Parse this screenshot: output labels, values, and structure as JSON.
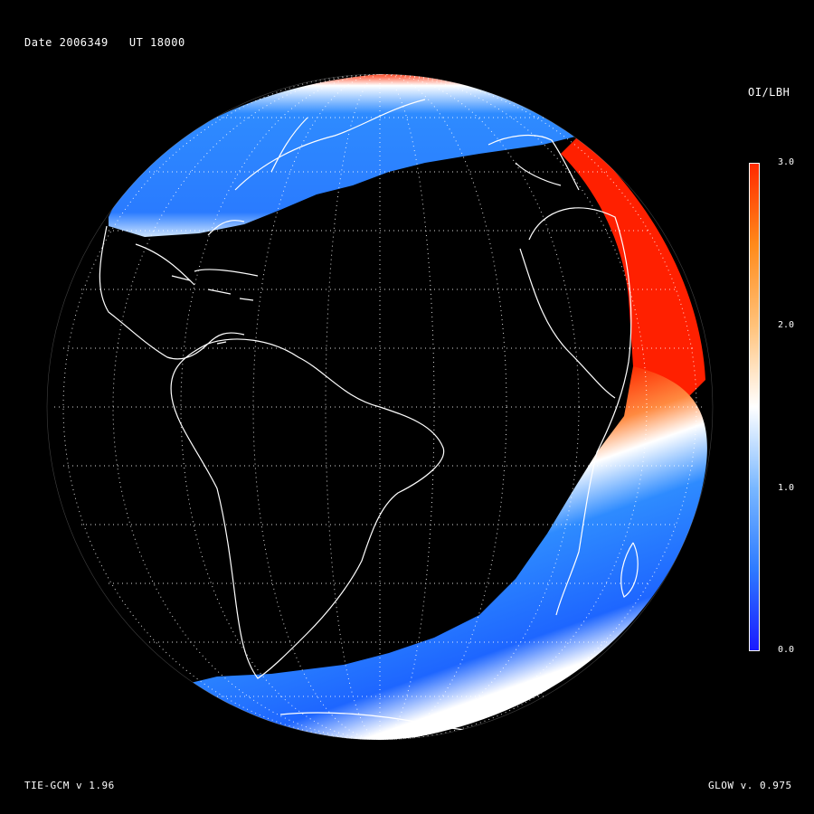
{
  "header": {
    "date_text": "Date 2006349   UT 18000"
  },
  "colorbar": {
    "title": "OI/LBH",
    "ticks": [
      "3.0",
      "2.0",
      "1.0",
      "0.0"
    ],
    "range": [
      0.0,
      3.0
    ],
    "colors": [
      "#1a1aff",
      "#2e7bff",
      "#79b7ff",
      "#ffffff",
      "#ffc27a",
      "#ff8a1a",
      "#ff2a00"
    ]
  },
  "footer": {
    "left_text": "TIE-GCM v 1.96",
    "right_text": "GLOW v. 0.975"
  },
  "map": {
    "background": "#000000",
    "grid": "dotted white lat/lon graticule",
    "coastlines": "white outline",
    "features": [
      "North America",
      "South America",
      "Africa",
      "Antarctica"
    ]
  }
}
